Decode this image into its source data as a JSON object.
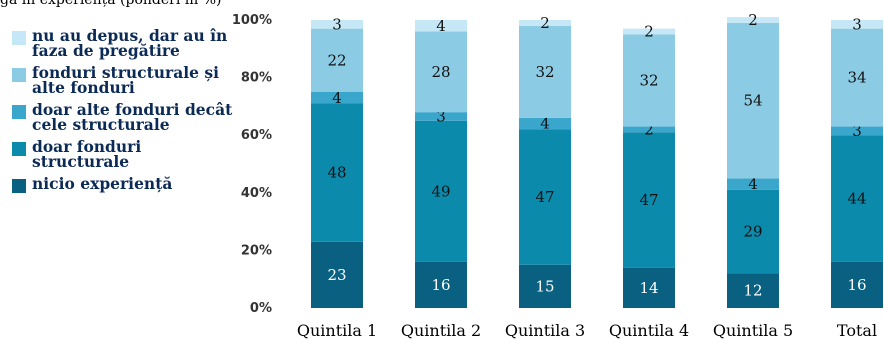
{
  "header": {
    "text": "gă în experiență (ponderi în %)"
  },
  "chart_data": {
    "type": "bar",
    "stacked": true,
    "categories": [
      "Quintila 1",
      "Quintila 2",
      "Quintila 3",
      "Quintila 4",
      "Quintila 5",
      "Total"
    ],
    "yticks": [
      "0%",
      "20%",
      "40%",
      "60%",
      "80%",
      "100%"
    ],
    "ylim": [
      0,
      100
    ],
    "grid": false,
    "legend_position": "left",
    "series": [
      {
        "name": "nicio experiență",
        "color": "#0a6080",
        "values": [
          23,
          16,
          15,
          14,
          12,
          16
        ]
      },
      {
        "name": "doar fonduri structurale",
        "color": "#0c8aab",
        "values": [
          48,
          49,
          47,
          47,
          29,
          44
        ]
      },
      {
        "name": "doar alte fonduri decât cele structurale",
        "color": "#3aa6cb",
        "values": [
          4,
          3,
          4,
          2,
          4,
          3
        ]
      },
      {
        "name": "fonduri structurale și alte fonduri",
        "color": "#8ccbe4",
        "values": [
          22,
          28,
          32,
          32,
          54,
          34
        ]
      },
      {
        "name": "nu au depus, dar au în faza de pregătire",
        "color": "#c6e8f6",
        "values": [
          3,
          4,
          2,
          2,
          2,
          3
        ]
      }
    ],
    "legend_order": [
      4,
      3,
      2,
      1,
      0
    ]
  }
}
